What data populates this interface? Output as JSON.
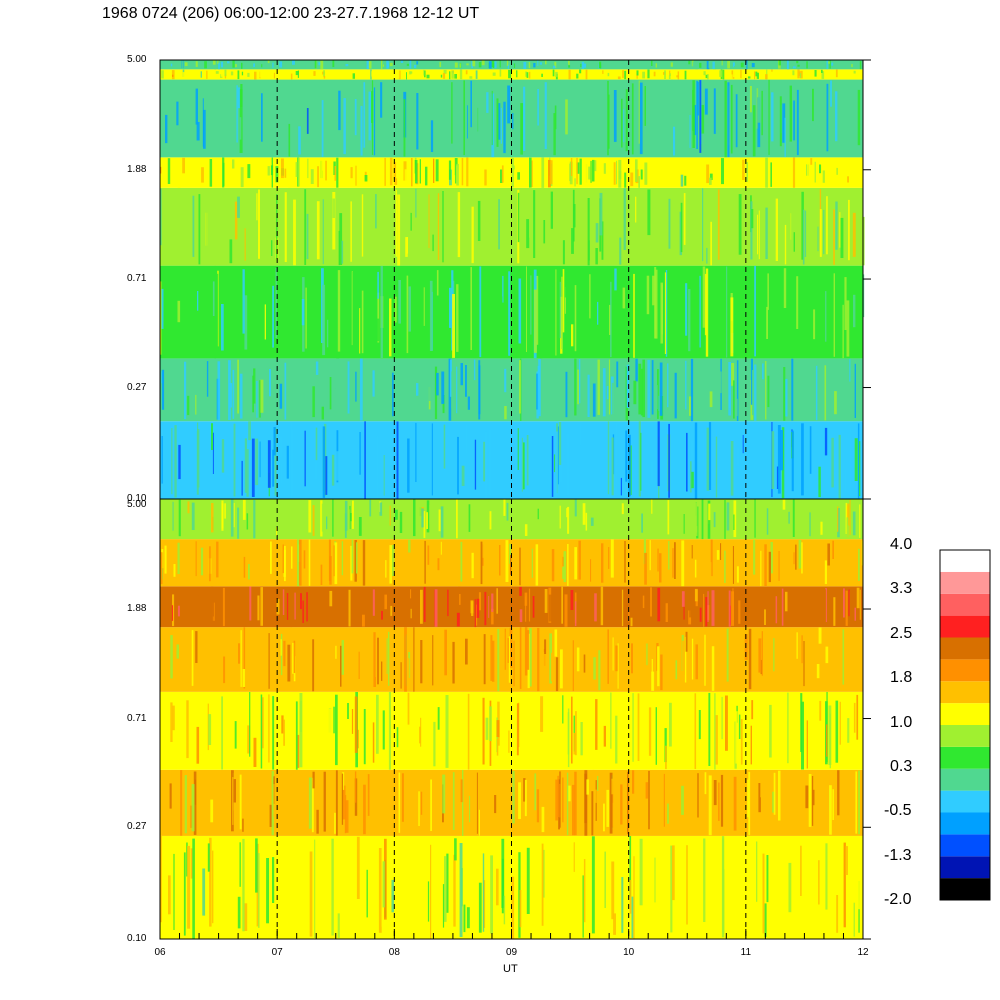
{
  "chart_data": {
    "type": "heatmap",
    "title": "1968 0724 (206) 06:00-12:00 23-27.7.1968  12-12 UT",
    "xlabel": "UT",
    "x_ticks": [
      "06",
      "07",
      "08",
      "09",
      "10",
      "11",
      "12"
    ],
    "xlim": [
      6,
      12
    ],
    "dashed_lines_at": [
      7,
      8,
      9,
      10,
      11
    ],
    "panels": [
      {
        "name": "top",
        "y_ticks": [
          "5.00",
          "1.88",
          "0.71",
          "0.27",
          "0.10"
        ],
        "ylim": [
          0.1,
          5.0
        ],
        "y_scale": "log",
        "bands": [
          {
            "y_from": 0.1,
            "y_to": 0.2,
            "level": -0.4
          },
          {
            "y_from": 0.2,
            "y_to": 0.35,
            "level": 0.0
          },
          {
            "y_from": 0.35,
            "y_to": 0.8,
            "level": 0.4
          },
          {
            "y_from": 0.8,
            "y_to": 1.6,
            "level": 0.7
          },
          {
            "y_from": 1.6,
            "y_to": 2.1,
            "level": 1.0
          },
          {
            "y_from": 2.1,
            "y_to": 4.2,
            "level": -0.1
          },
          {
            "y_from": 4.2,
            "y_to": 4.6,
            "level": 1.0
          },
          {
            "y_from": 4.6,
            "y_to": 5.0,
            "level": 0.2
          }
        ]
      },
      {
        "name": "bottom",
        "y_ticks": [
          "5.00",
          "1.88",
          "0.71",
          "0.27",
          "0.10"
        ],
        "ylim": [
          0.1,
          5.0
        ],
        "y_scale": "log",
        "bands": [
          {
            "y_from": 0.1,
            "y_to": 0.25,
            "level": 1.0
          },
          {
            "y_from": 0.25,
            "y_to": 0.45,
            "level": 1.6
          },
          {
            "y_from": 0.45,
            "y_to": 0.9,
            "level": 1.2
          },
          {
            "y_from": 0.9,
            "y_to": 1.6,
            "level": 1.6
          },
          {
            "y_from": 1.6,
            "y_to": 2.3,
            "level": 2.3
          },
          {
            "y_from": 2.3,
            "y_to": 3.5,
            "level": 1.5
          },
          {
            "y_from": 3.5,
            "y_to": 5.0,
            "level": 0.7
          }
        ]
      }
    ],
    "colorbar": {
      "tick_labels": [
        "4.0",
        "3.3",
        "2.5",
        "1.8",
        "1.0",
        "0.3",
        "-0.5",
        "-1.3",
        "-2.0"
      ],
      "range": [
        -2.0,
        4.0
      ],
      "colors_bottom_to_top": [
        "#000000",
        "#0014b4",
        "#0050ff",
        "#00a0ff",
        "#30ccff",
        "#50d890",
        "#30e830",
        "#a0f030",
        "#ffff00",
        "#ffc000",
        "#ff9000",
        "#d87000",
        "#ff2020",
        "#ff6060",
        "#ff9898",
        "#ffffff"
      ]
    }
  }
}
